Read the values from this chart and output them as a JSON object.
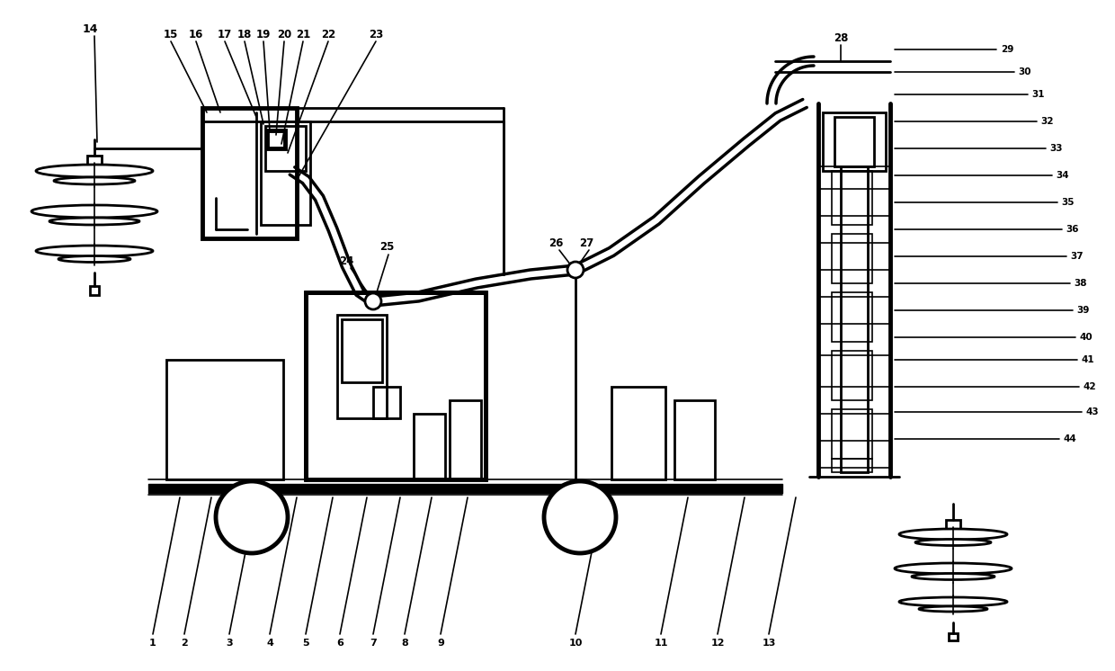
{
  "bg_color": "#ffffff",
  "line_color": "#000000",
  "figsize": [
    12.4,
    7.46
  ],
  "dpi": 100,
  "lw": 2.0,
  "lw_thick": 3.5,
  "lw_thin": 1.2
}
